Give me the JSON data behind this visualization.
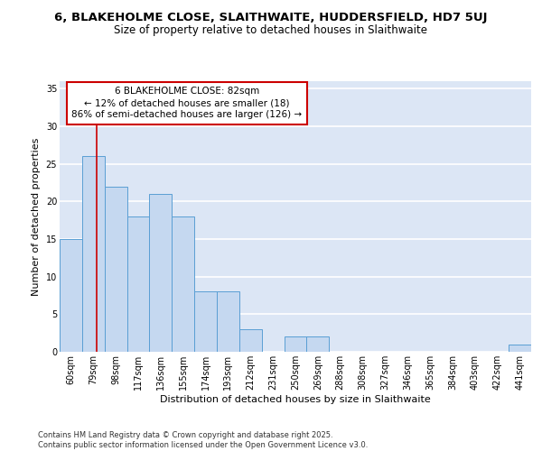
{
  "title_line1": "6, BLAKEHOLME CLOSE, SLAITHWAITE, HUDDERSFIELD, HD7 5UJ",
  "title_line2": "Size of property relative to detached houses in Slaithwaite",
  "xlabel": "Distribution of detached houses by size in Slaithwaite",
  "ylabel": "Number of detached properties",
  "categories": [
    "60sqm",
    "79sqm",
    "98sqm",
    "117sqm",
    "136sqm",
    "155sqm",
    "174sqm",
    "193sqm",
    "212sqm",
    "231sqm",
    "250sqm",
    "269sqm",
    "288sqm",
    "308sqm",
    "327sqm",
    "346sqm",
    "365sqm",
    "384sqm",
    "403sqm",
    "422sqm",
    "441sqm"
  ],
  "values": [
    15,
    26,
    22,
    18,
    21,
    18,
    8,
    8,
    3,
    0,
    2,
    2,
    0,
    0,
    0,
    0,
    0,
    0,
    0,
    0,
    1
  ],
  "bar_color": "#c5d8f0",
  "bar_edge_color": "#5a9fd4",
  "background_color": "#dce6f5",
  "grid_color": "#ffffff",
  "annotation_border_color": "#cc0000",
  "annotation_text": "6 BLAKEHOLME CLOSE: 82sqm\n← 12% of detached houses are smaller (18)\n86% of semi-detached houses are larger (126) →",
  "red_line_x": 1.15,
  "ylim": [
    0,
    36
  ],
  "yticks": [
    0,
    5,
    10,
    15,
    20,
    25,
    30,
    35
  ],
  "footer_text": "Contains HM Land Registry data © Crown copyright and database right 2025.\nContains public sector information licensed under the Open Government Licence v3.0.",
  "title_fontsize": 9.5,
  "subtitle_fontsize": 8.5,
  "axis_label_fontsize": 8,
  "tick_fontsize": 7,
  "annotation_fontsize": 7.5,
  "footer_fontsize": 6
}
